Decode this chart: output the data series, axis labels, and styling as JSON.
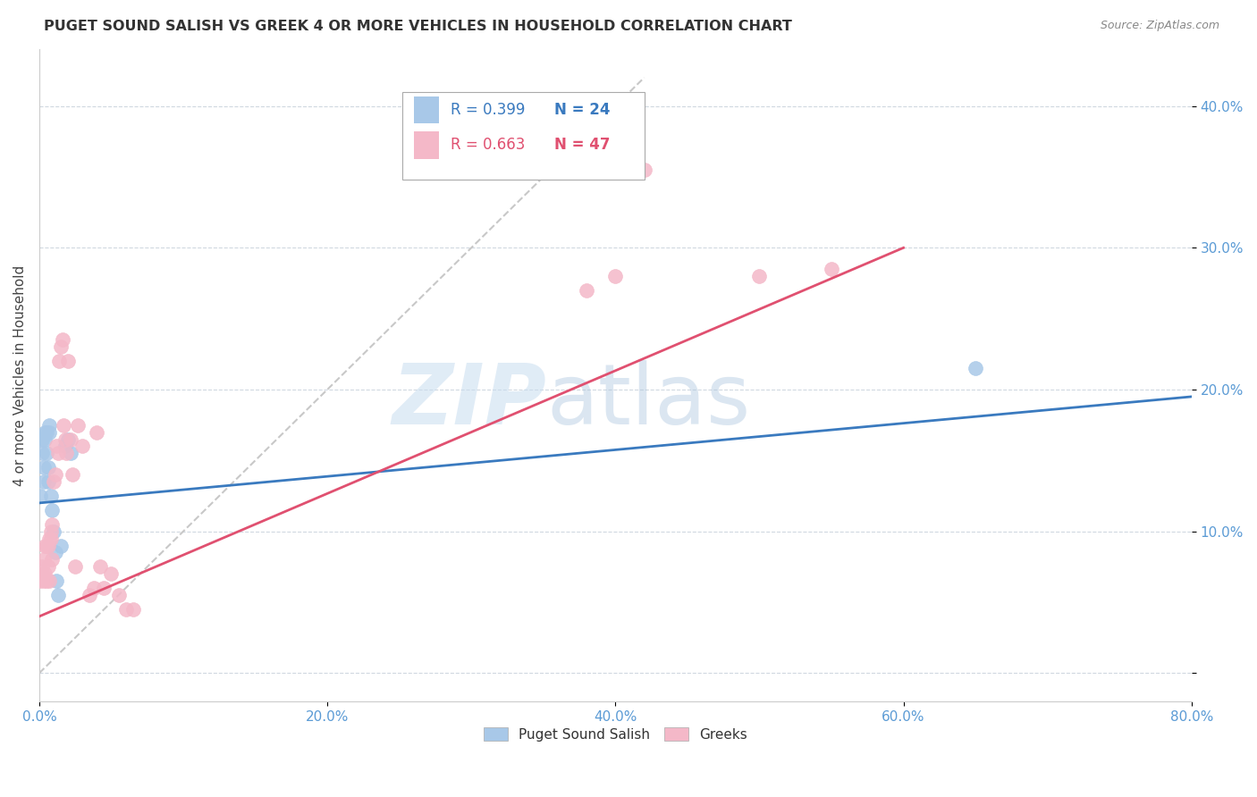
{
  "title": "PUGET SOUND SALISH VS GREEK 4 OR MORE VEHICLES IN HOUSEHOLD CORRELATION CHART",
  "source": "Source: ZipAtlas.com",
  "ylabel": "4 or more Vehicles in Household",
  "xlim": [
    0.0,
    0.8
  ],
  "ylim": [
    -0.02,
    0.44
  ],
  "yticks": [
    0.0,
    0.1,
    0.2,
    0.3,
    0.4
  ],
  "xticks": [
    0.0,
    0.2,
    0.4,
    0.6,
    0.8
  ],
  "xtick_labels": [
    "0.0%",
    "20.0%",
    "40.0%",
    "60.0%",
    "80.0%"
  ],
  "ytick_labels": [
    "",
    "10.0%",
    "20.0%",
    "30.0%",
    "40.0%"
  ],
  "watermark_zip": "ZIP",
  "watermark_atlas": "atlas",
  "legend_blue_R": "R = 0.399",
  "legend_blue_N": "N = 24",
  "legend_pink_R": "R = 0.663",
  "legend_pink_N": "N = 47",
  "blue_scatter_color": "#a8c8e8",
  "pink_scatter_color": "#f4b8c8",
  "blue_line_color": "#3a7abf",
  "pink_line_color": "#e05070",
  "diagonal_color": "#c8c8c8",
  "blue_line_x0": 0.0,
  "blue_line_y0": 0.12,
  "blue_line_x1": 0.8,
  "blue_line_y1": 0.195,
  "pink_line_x0": 0.0,
  "pink_line_y0": 0.04,
  "pink_line_x1": 0.6,
  "pink_line_y1": 0.3,
  "puget_sound_salish_x": [
    0.001,
    0.002,
    0.002,
    0.003,
    0.003,
    0.004,
    0.004,
    0.005,
    0.005,
    0.006,
    0.006,
    0.007,
    0.007,
    0.008,
    0.009,
    0.01,
    0.011,
    0.012,
    0.013,
    0.015,
    0.018,
    0.02,
    0.022,
    0.65
  ],
  "puget_sound_salish_y": [
    0.125,
    0.155,
    0.165,
    0.145,
    0.135,
    0.165,
    0.17,
    0.155,
    0.17,
    0.145,
    0.135,
    0.175,
    0.17,
    0.125,
    0.115,
    0.1,
    0.085,
    0.065,
    0.055,
    0.09,
    0.16,
    0.165,
    0.155,
    0.215
  ],
  "greeks_x": [
    0.001,
    0.002,
    0.002,
    0.003,
    0.003,
    0.004,
    0.004,
    0.005,
    0.005,
    0.006,
    0.006,
    0.007,
    0.007,
    0.008,
    0.008,
    0.009,
    0.009,
    0.01,
    0.011,
    0.012,
    0.013,
    0.014,
    0.015,
    0.016,
    0.017,
    0.018,
    0.019,
    0.02,
    0.022,
    0.023,
    0.025,
    0.027,
    0.03,
    0.035,
    0.038,
    0.04,
    0.042,
    0.045,
    0.05,
    0.055,
    0.06,
    0.065,
    0.38,
    0.4,
    0.42,
    0.5,
    0.55
  ],
  "greeks_y": [
    0.065,
    0.07,
    0.075,
    0.065,
    0.08,
    0.07,
    0.09,
    0.065,
    0.09,
    0.075,
    0.09,
    0.065,
    0.095,
    0.095,
    0.1,
    0.08,
    0.105,
    0.135,
    0.14,
    0.16,
    0.155,
    0.22,
    0.23,
    0.235,
    0.175,
    0.165,
    0.155,
    0.22,
    0.165,
    0.14,
    0.075,
    0.175,
    0.16,
    0.055,
    0.06,
    0.17,
    0.075,
    0.06,
    0.07,
    0.055,
    0.045,
    0.045,
    0.27,
    0.28,
    0.355,
    0.28,
    0.285
  ]
}
